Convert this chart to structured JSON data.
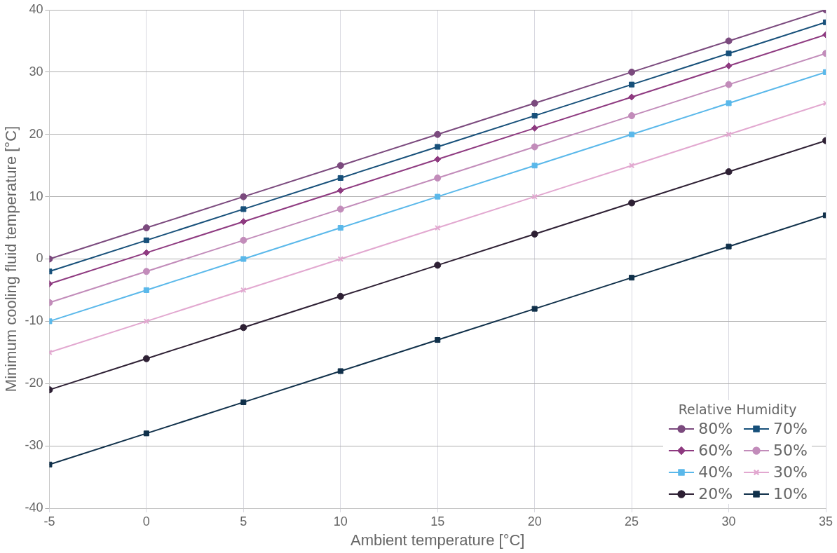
{
  "chart_data": {
    "type": "line",
    "xlabel": "Ambient temperature [°C]",
    "ylabel": "Minimum cooling fluid temperature [°C]",
    "legend_title": "Relative Humidity",
    "x": [
      -5,
      0,
      5,
      10,
      15,
      20,
      25,
      30,
      35
    ],
    "xlim": [
      -5,
      35
    ],
    "xticks": [
      -5,
      0,
      5,
      10,
      15,
      20,
      25,
      30,
      35
    ],
    "ylim": [
      -40,
      40
    ],
    "yticks": [
      -40,
      -30,
      -20,
      -10,
      0,
      10,
      20,
      30,
      40
    ],
    "grid": true,
    "legend": "bottom right",
    "line_style": "solid",
    "series": [
      {
        "name": "80%",
        "color": "#7b4a7e",
        "marker": "circle",
        "values": [
          0,
          5,
          10,
          15,
          20,
          25,
          30,
          35,
          40
        ]
      },
      {
        "name": "70%",
        "color": "#17507a",
        "marker": "square",
        "values": [
          -2,
          3,
          8,
          13,
          18,
          23,
          28,
          33,
          38
        ]
      },
      {
        "name": "60%",
        "color": "#8e3a80",
        "marker": "diamond",
        "values": [
          -4,
          1,
          6,
          11,
          16,
          21,
          26,
          31,
          36
        ]
      },
      {
        "name": "50%",
        "color": "#c28cba",
        "marker": "circle",
        "values": [
          -7,
          -2,
          3,
          8,
          13,
          18,
          23,
          28,
          33
        ]
      },
      {
        "name": "40%",
        "color": "#5ab8ea",
        "marker": "square",
        "values": [
          -10,
          -5,
          0,
          5,
          10,
          15,
          20,
          25,
          30
        ]
      },
      {
        "name": "30%",
        "color": "#e2a8d0",
        "marker": "cross",
        "values": [
          -15,
          -10,
          -5,
          0,
          5,
          10,
          15,
          20,
          25
        ]
      },
      {
        "name": "20%",
        "color": "#2e2034",
        "marker": "circle",
        "values": [
          -21,
          -16,
          -11,
          -6,
          -1,
          4,
          9,
          14,
          19
        ]
      },
      {
        "name": "10%",
        "color": "#10304a",
        "marker": "square",
        "values": [
          -33,
          -28,
          -23,
          -18,
          -13,
          -8,
          -3,
          2,
          7
        ]
      }
    ]
  }
}
